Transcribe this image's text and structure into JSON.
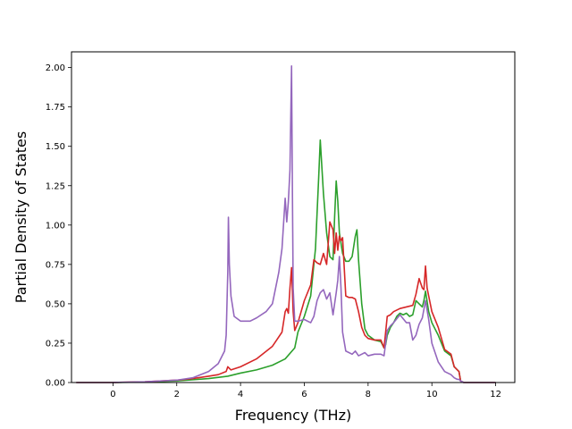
{
  "chart_data": {
    "type": "line",
    "title": "",
    "xlabel": "Frequency (THz)",
    "ylabel": "Partial Density of States",
    "xlim": [
      -1.3,
      12.6
    ],
    "ylim": [
      0,
      2.1
    ],
    "xticks": [
      0,
      2,
      4,
      6,
      8,
      10,
      12
    ],
    "xtick_labels": [
      "0",
      "2",
      "4",
      "6",
      "8",
      "10",
      "12"
    ],
    "yticks": [
      0,
      0.25,
      0.5,
      0.75,
      1.0,
      1.25,
      1.5,
      1.75,
      2.0
    ],
    "ytick_labels": [
      "0.00",
      "0.25",
      "0.50",
      "0.75",
      "1.00",
      "1.25",
      "1.50",
      "1.75",
      "2.00"
    ],
    "grid": false,
    "legend": "none",
    "series": [
      {
        "color": "#2ca02c",
        "x": [
          -1.15,
          0,
          1,
          2,
          3,
          3.6,
          4,
          4.5,
          5,
          5.4,
          5.7,
          5.8,
          6,
          6.2,
          6.35,
          6.45,
          6.5,
          6.6,
          6.7,
          6.8,
          6.9,
          6.95,
          7.0,
          7.05,
          7.1,
          7.2,
          7.3,
          7.4,
          7.5,
          7.6,
          7.65,
          7.7,
          7.8,
          7.9,
          8.0,
          8.2,
          8.4,
          8.5,
          8.55,
          8.6,
          8.7,
          8.8,
          8.9,
          9.0,
          9.1,
          9.2,
          9.3,
          9.4,
          9.5,
          9.6,
          9.7,
          9.75,
          9.8,
          9.9,
          10.0,
          10.2,
          10.4,
          10.6,
          10.7,
          10.8,
          10.85,
          10.9,
          11,
          12
        ],
        "y": [
          0,
          0,
          0.003,
          0.01,
          0.025,
          0.04,
          0.06,
          0.08,
          0.11,
          0.15,
          0.22,
          0.32,
          0.42,
          0.55,
          0.85,
          1.3,
          1.54,
          1.2,
          0.95,
          0.8,
          0.78,
          1.05,
          1.28,
          1.15,
          0.95,
          0.82,
          0.77,
          0.77,
          0.8,
          0.93,
          0.97,
          0.78,
          0.5,
          0.34,
          0.3,
          0.27,
          0.26,
          0.22,
          0.24,
          0.3,
          0.35,
          0.38,
          0.42,
          0.44,
          0.43,
          0.44,
          0.42,
          0.43,
          0.52,
          0.5,
          0.48,
          0.52,
          0.58,
          0.45,
          0.38,
          0.3,
          0.2,
          0.17,
          0.1,
          0.08,
          0.07,
          0.01,
          0,
          0
        ]
      },
      {
        "color": "#d62728",
        "x": [
          -1.15,
          0,
          1,
          2,
          2.5,
          3,
          3.3,
          3.55,
          3.6,
          3.7,
          4,
          4.5,
          5,
          5.3,
          5.4,
          5.45,
          5.5,
          5.55,
          5.6,
          5.65,
          5.7,
          5.8,
          6,
          6.2,
          6.3,
          6.4,
          6.5,
          6.6,
          6.7,
          6.8,
          6.9,
          6.95,
          7.0,
          7.05,
          7.1,
          7.15,
          7.2,
          7.3,
          7.4,
          7.5,
          7.6,
          7.7,
          7.8,
          7.9,
          8.0,
          8.2,
          8.4,
          8.5,
          8.6,
          8.7,
          8.8,
          9.0,
          9.2,
          9.4,
          9.5,
          9.6,
          9.7,
          9.75,
          9.8,
          9.85,
          9.9,
          10.0,
          10.2,
          10.4,
          10.6,
          10.7,
          10.8,
          10.85,
          10.9,
          11,
          12
        ],
        "y": [
          0,
          0,
          0.005,
          0.015,
          0.025,
          0.04,
          0.05,
          0.07,
          0.1,
          0.08,
          0.1,
          0.15,
          0.23,
          0.32,
          0.45,
          0.47,
          0.44,
          0.6,
          0.73,
          0.45,
          0.33,
          0.38,
          0.52,
          0.62,
          0.78,
          0.76,
          0.75,
          0.82,
          0.75,
          1.02,
          0.97,
          0.82,
          0.95,
          0.84,
          0.93,
          0.9,
          0.92,
          0.55,
          0.54,
          0.54,
          0.53,
          0.45,
          0.35,
          0.3,
          0.28,
          0.27,
          0.27,
          0.22,
          0.42,
          0.43,
          0.45,
          0.47,
          0.48,
          0.49,
          0.56,
          0.66,
          0.6,
          0.59,
          0.74,
          0.6,
          0.55,
          0.45,
          0.35,
          0.21,
          0.18,
          0.1,
          0.08,
          0.07,
          0.01,
          0,
          0
        ]
      },
      {
        "color": "#9467bd",
        "x": [
          -1.15,
          0,
          1,
          2,
          2.5,
          3,
          3.3,
          3.5,
          3.55,
          3.6,
          3.62,
          3.65,
          3.7,
          3.8,
          4,
          4.3,
          4.5,
          4.8,
          5,
          5.1,
          5.2,
          5.3,
          5.4,
          5.45,
          5.5,
          5.55,
          5.6,
          5.62,
          5.65,
          5.7,
          5.8,
          6,
          6.2,
          6.3,
          6.4,
          6.5,
          6.6,
          6.7,
          6.8,
          6.9,
          7.0,
          7.05,
          7.1,
          7.15,
          7.2,
          7.3,
          7.5,
          7.6,
          7.7,
          7.8,
          7.9,
          8.0,
          8.2,
          8.4,
          8.5,
          8.6,
          8.7,
          8.8,
          9.0,
          9.2,
          9.3,
          9.4,
          9.5,
          9.6,
          9.7,
          9.8,
          9.9,
          10.0,
          10.2,
          10.4,
          10.6,
          10.7,
          10.8,
          10.85,
          10.9,
          11,
          12
        ],
        "y": [
          0,
          0,
          0.005,
          0.015,
          0.03,
          0.07,
          0.12,
          0.2,
          0.3,
          0.7,
          1.05,
          0.75,
          0.55,
          0.42,
          0.39,
          0.39,
          0.41,
          0.45,
          0.5,
          0.6,
          0.7,
          0.85,
          1.17,
          1.02,
          1.15,
          1.35,
          2.01,
          1.4,
          0.6,
          0.39,
          0.39,
          0.4,
          0.38,
          0.42,
          0.52,
          0.57,
          0.59,
          0.53,
          0.57,
          0.43,
          0.57,
          0.65,
          0.8,
          0.6,
          0.32,
          0.2,
          0.18,
          0.2,
          0.17,
          0.18,
          0.19,
          0.17,
          0.18,
          0.18,
          0.17,
          0.33,
          0.36,
          0.38,
          0.43,
          0.38,
          0.38,
          0.27,
          0.3,
          0.37,
          0.41,
          0.52,
          0.4,
          0.25,
          0.13,
          0.07,
          0.05,
          0.03,
          0.02,
          0.02,
          0.01,
          0,
          0
        ]
      }
    ]
  }
}
